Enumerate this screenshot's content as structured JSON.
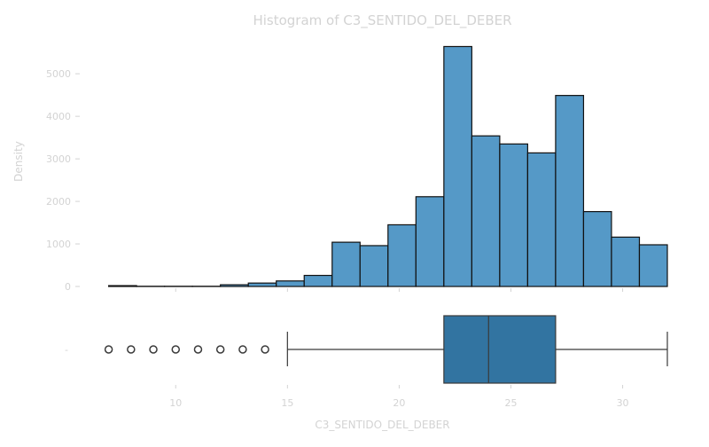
{
  "chart_data": {
    "type": "histogram_with_boxplot",
    "title": "Histogram of C3_SENTIDO_DEL_DEBER",
    "xlabel": "C3_SENTIDO_DEL_DEBER",
    "ylabel": "Density",
    "xlim": [
      6.5,
      32
    ],
    "ylim": [
      0,
      5900
    ],
    "x_ticks": [
      10,
      15,
      20,
      25,
      30
    ],
    "y_ticks": [
      0,
      1000,
      2000,
      3000,
      4000,
      5000
    ],
    "box_y_tick_label": "-",
    "histogram": {
      "bins": [
        {
          "x0": 7.0,
          "x1": 8.25,
          "value": 20
        },
        {
          "x0": 8.25,
          "x1": 9.5,
          "value": 5
        },
        {
          "x0": 9.5,
          "x1": 10.75,
          "value": 5
        },
        {
          "x0": 10.75,
          "x1": 12.0,
          "value": 5
        },
        {
          "x0": 12.0,
          "x1": 13.25,
          "value": 40
        },
        {
          "x0": 13.25,
          "x1": 14.5,
          "value": 80
        },
        {
          "x0": 14.5,
          "x1": 15.75,
          "value": 130
        },
        {
          "x0": 15.75,
          "x1": 17.0,
          "value": 260
        },
        {
          "x0": 17.0,
          "x1": 18.25,
          "value": 1040
        },
        {
          "x0": 18.25,
          "x1": 19.5,
          "value": 960
        },
        {
          "x0": 19.5,
          "x1": 20.75,
          "value": 1450
        },
        {
          "x0": 20.75,
          "x1": 22.0,
          "value": 2110
        },
        {
          "x0": 22.0,
          "x1": 23.25,
          "value": 5640
        },
        {
          "x0": 23.25,
          "x1": 24.5,
          "value": 3540
        },
        {
          "x0": 24.5,
          "x1": 25.75,
          "value": 3350
        },
        {
          "x0": 25.75,
          "x1": 27.0,
          "value": 3140
        },
        {
          "x0": 27.0,
          "x1": 28.25,
          "value": 4490
        },
        {
          "x0": 28.25,
          "x1": 29.5,
          "value": 1760
        },
        {
          "x0": 29.5,
          "x1": 30.75,
          "value": 1160
        },
        {
          "x0": 30.75,
          "x1": 32.0,
          "value": 980
        }
      ]
    },
    "boxplot": {
      "whisker_low": 15,
      "q1": 22,
      "median": 24,
      "q3": 27,
      "whisker_high": 32,
      "outliers": [
        7,
        8,
        9,
        10,
        11,
        12,
        13,
        14
      ]
    },
    "colors": {
      "histogram_fill": "#5599c7",
      "box_fill": "#3274a1",
      "edge": "#111111",
      "text": "#d3d3d3"
    }
  }
}
